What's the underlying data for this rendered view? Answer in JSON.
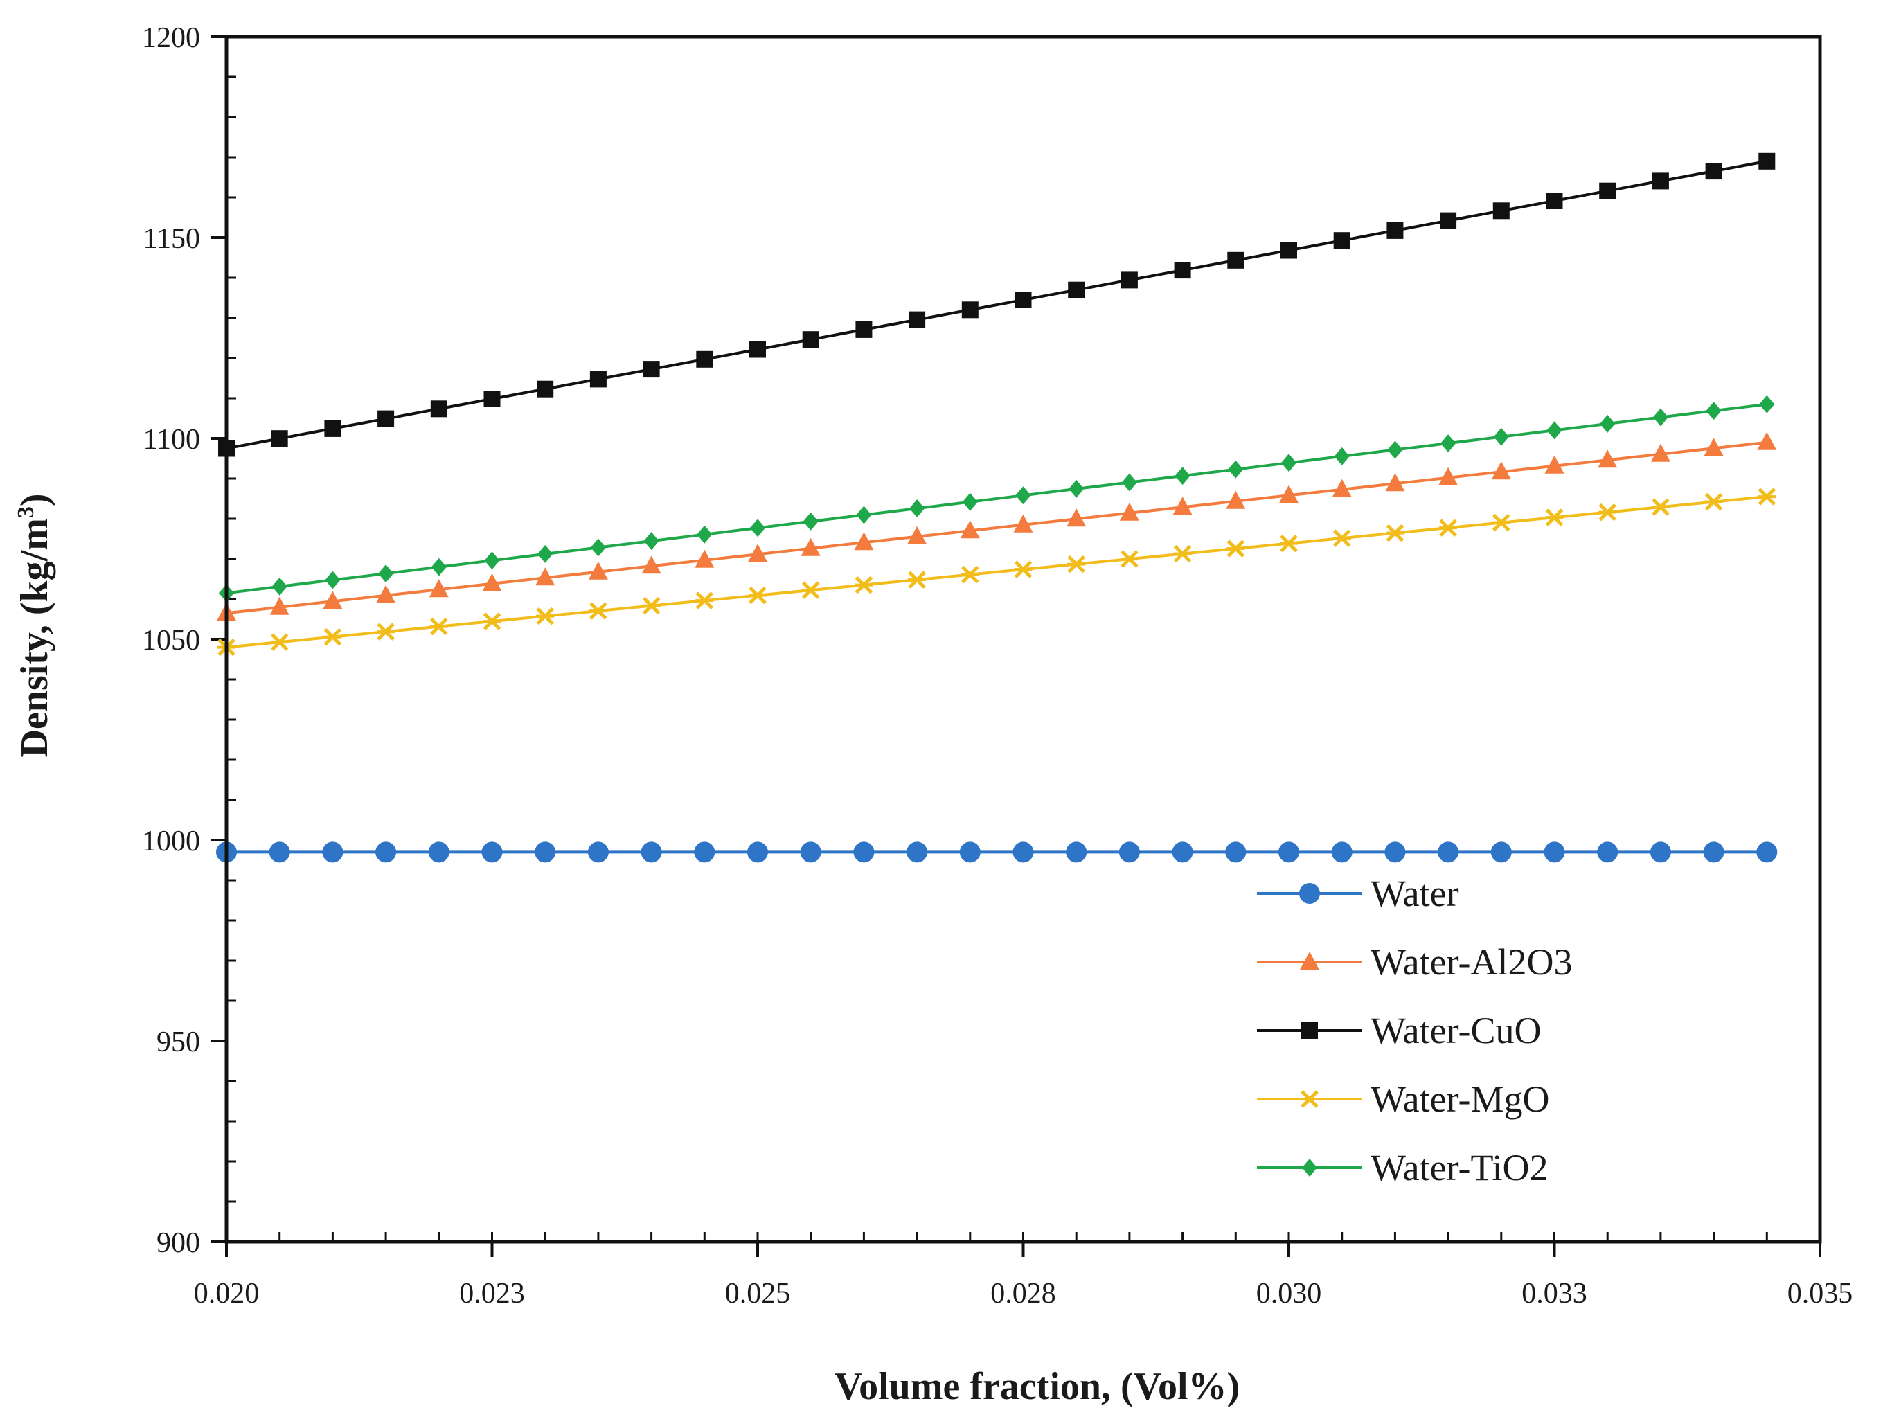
{
  "chart_data": {
    "type": "line",
    "xlabel": "Volume fraction, (Vol%)",
    "ylabel_main": "Density, (kg/m",
    "ylabel_sup": "3",
    "ylabel_end": ")",
    "xlim": [
      0.02,
      0.035
    ],
    "ylim": [
      900,
      1200
    ],
    "x_ticks": [
      0.02,
      0.0225,
      0.025,
      0.0275,
      0.03,
      0.0325,
      0.035
    ],
    "x_tick_labels": [
      "0.020",
      "0.023",
      "0.025",
      "0.028",
      "0.030",
      "0.033",
      "0.035"
    ],
    "y_ticks": [
      900,
      950,
      1000,
      1050,
      1100,
      1150,
      1200
    ],
    "y_tick_labels": [
      "900",
      "950",
      "1000",
      "1050",
      "1100",
      "1150",
      "1200"
    ],
    "x": [
      0.02,
      0.0205,
      0.021,
      0.0215,
      0.022,
      0.0225,
      0.023,
      0.0235,
      0.024,
      0.0245,
      0.025,
      0.0255,
      0.026,
      0.0265,
      0.027,
      0.0275,
      0.028,
      0.0285,
      0.029,
      0.0295,
      0.03,
      0.0305,
      0.031,
      0.0315,
      0.032,
      0.0325,
      0.033,
      0.0335,
      0.034,
      0.0345
    ],
    "legend_position": "bottom-right",
    "grid": false,
    "series": [
      {
        "name": "Water",
        "color": "#2e75c8",
        "marker": "circle",
        "start": 997.0,
        "end": 997.0
      },
      {
        "name": "Water-Al2O3",
        "color": "#f47b3e",
        "marker": "triangle",
        "start": 1056.5,
        "end": 1099.0
      },
      {
        "name": "Water-CuO",
        "color": "#111111",
        "marker": "square",
        "start": 1097.5,
        "end": 1169.0
      },
      {
        "name": "Water-MgO",
        "color": "#f2bc1a",
        "marker": "star",
        "start": 1048.0,
        "end": 1085.5
      },
      {
        "name": "Water-TiO2",
        "color": "#1ea84a",
        "marker": "diamond",
        "start": 1061.5,
        "end": 1108.5
      }
    ]
  }
}
